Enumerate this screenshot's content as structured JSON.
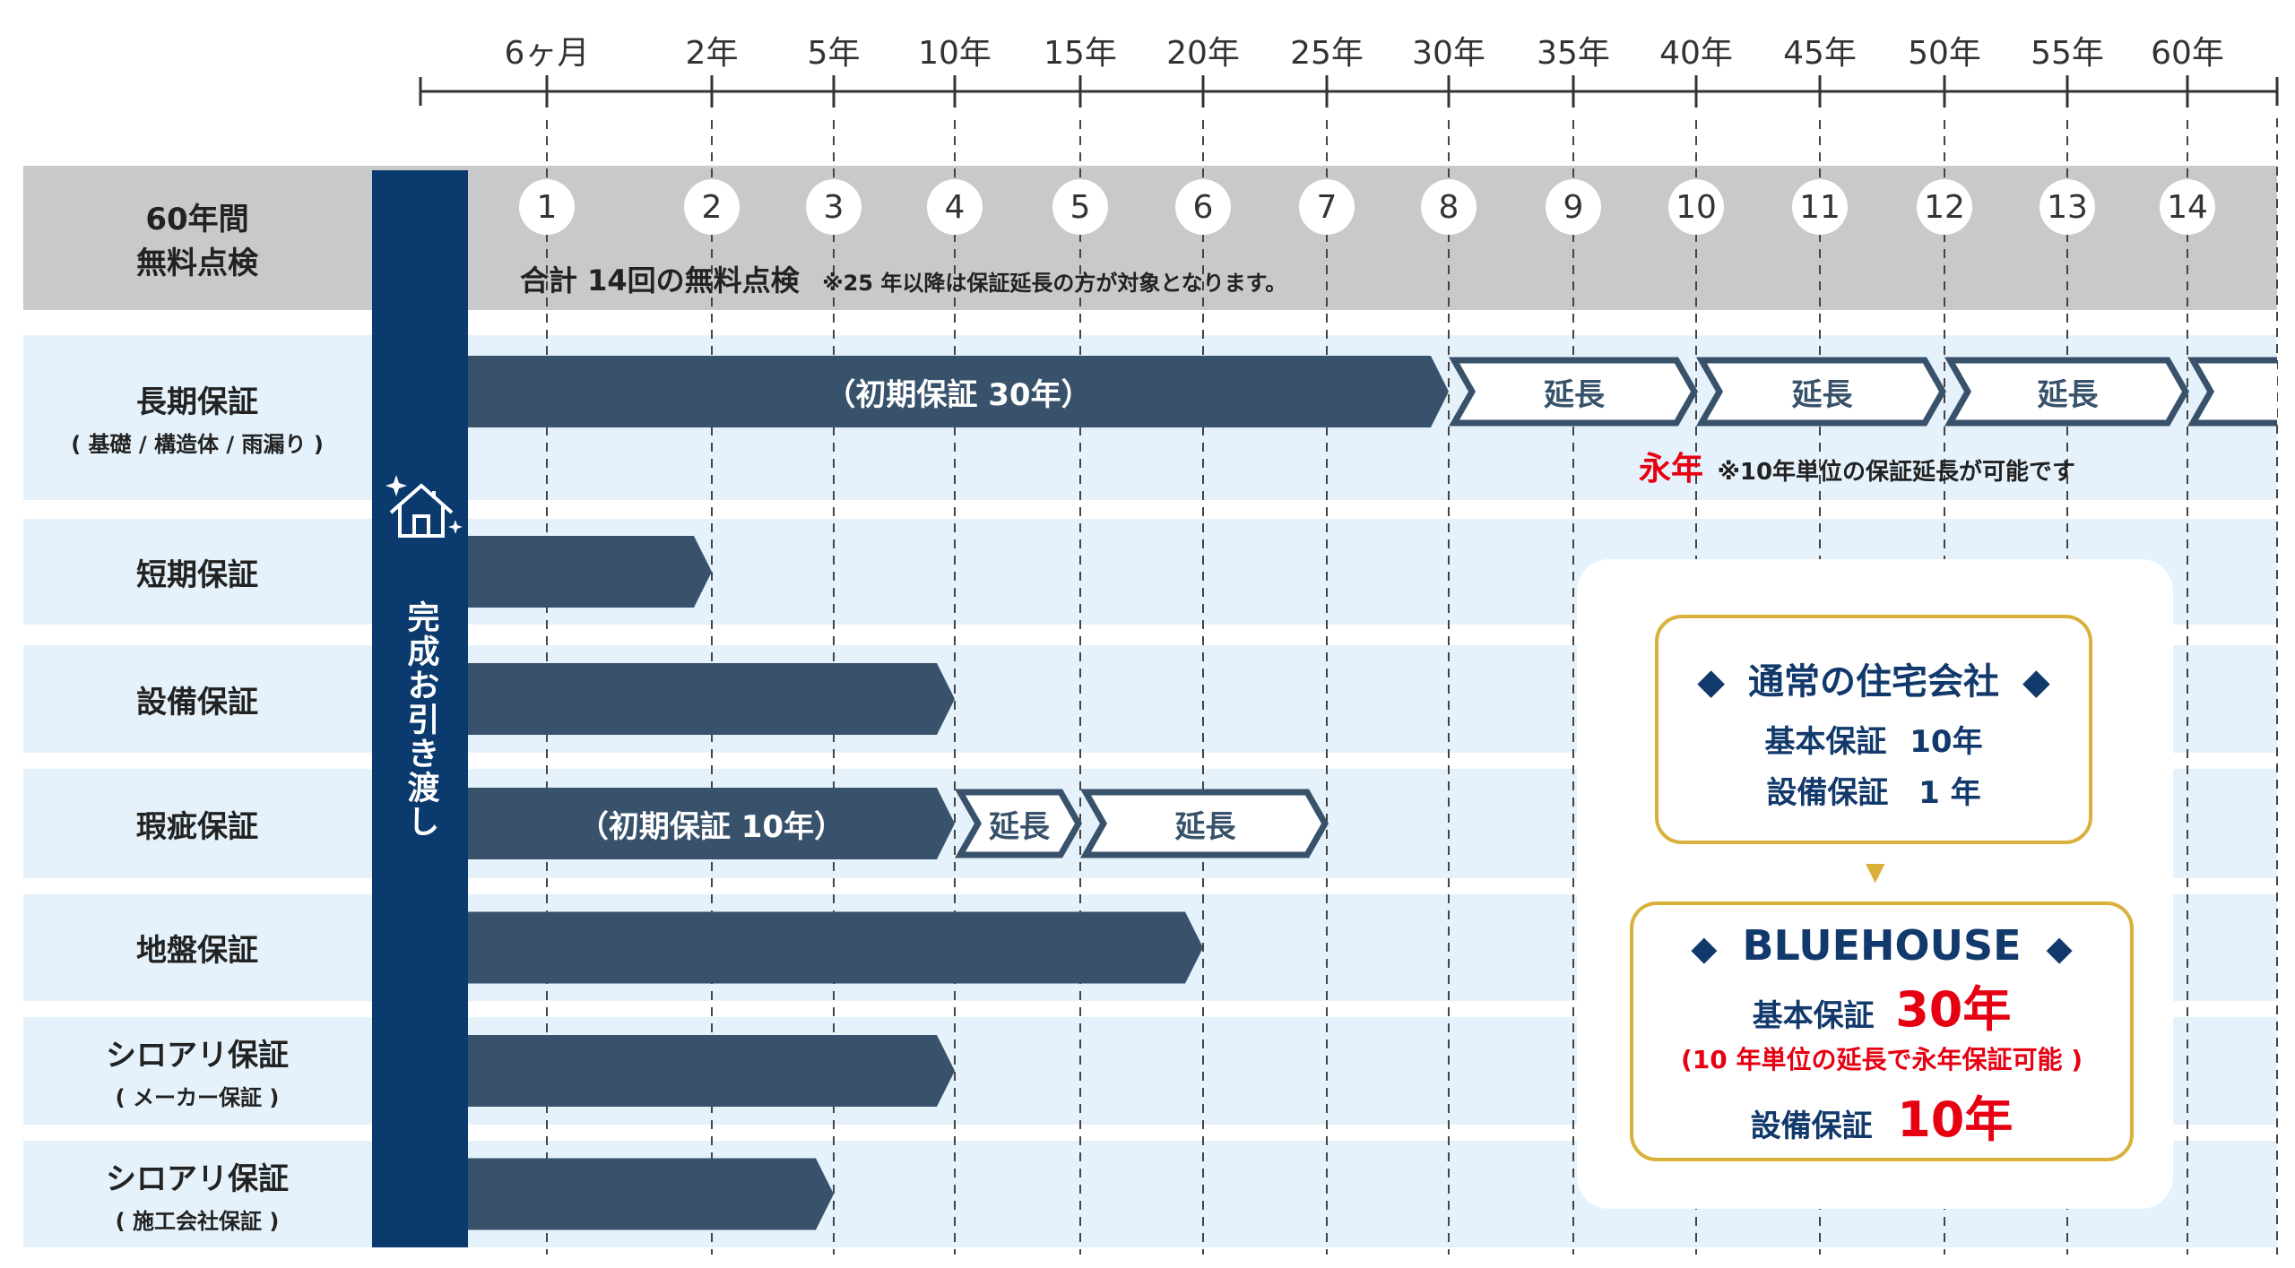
{
  "colors": {
    "bar": "#38526b",
    "row_bg": "#e6f2fb",
    "gray_band": "#c8c9c9",
    "navy": "#0b3a6e",
    "gold": "#d9b03a",
    "red": "#e60012",
    "text_navy": "#12396b"
  },
  "timeline": {
    "ticks": [
      {
        "label": "6ヶ月",
        "years": 0.5
      },
      {
        "label": "2年",
        "years": 2
      },
      {
        "label": "5年",
        "years": 5
      },
      {
        "label": "10年",
        "years": 10
      },
      {
        "label": "15年",
        "years": 15
      },
      {
        "label": "20年",
        "years": 20
      },
      {
        "label": "25年",
        "years": 25
      },
      {
        "label": "30年",
        "years": 30
      },
      {
        "label": "35年",
        "years": 35
      },
      {
        "label": "40年",
        "years": 40
      },
      {
        "label": "45年",
        "years": 45
      },
      {
        "label": "50年",
        "years": 50
      },
      {
        "label": "55年",
        "years": 55
      },
      {
        "label": "60年",
        "years": 60
      }
    ]
  },
  "inspection": {
    "label_line1": "60年間",
    "label_line2": "無料点検",
    "numbers": [
      "1",
      "2",
      "3",
      "4",
      "5",
      "6",
      "7",
      "8",
      "9",
      "10",
      "11",
      "12",
      "13",
      "14"
    ],
    "summary": "合計 14回の無料点検",
    "note": "※25 年以降は保証延長の方が対象となります。"
  },
  "handover": {
    "label": "完成お引き渡し",
    "icon": "house-sparkle-icon"
  },
  "rows": [
    {
      "label": "長期保証",
      "sub": "( 基礎 / 構造体 / 雨漏り )",
      "bar_end_years": 30,
      "bar_text": "（初期保証 30年）",
      "extensions": [
        {
          "from": 30,
          "to": 40,
          "label": "延長"
        },
        {
          "from": 40,
          "to": 50,
          "label": "延長"
        },
        {
          "from": 50,
          "to": 60,
          "label": "延長"
        },
        {
          "from": 60,
          "to": 65,
          "label": ""
        }
      ],
      "note_emphasis": "永年",
      "note": "※10年単位の保証延長が可能です"
    },
    {
      "label": "短期保証",
      "sub": "",
      "bar_end_years": 2,
      "bar_text": "",
      "extensions": []
    },
    {
      "label": "設備保証",
      "sub": "",
      "bar_end_years": 10,
      "bar_text": "",
      "extensions": []
    },
    {
      "label": "瑕疵保証",
      "sub": "",
      "bar_end_years": 10,
      "bar_text": "（初期保証 10年）",
      "extensions": [
        {
          "from": 10,
          "to": 15,
          "label": "延長"
        },
        {
          "from": 15,
          "to": 25,
          "label": "延長"
        }
      ]
    },
    {
      "label": "地盤保証",
      "sub": "",
      "bar_end_years": 20,
      "bar_text": "",
      "extensions": []
    },
    {
      "label": "シロアリ保証",
      "sub": "( メーカー保証 )",
      "bar_end_years": 10,
      "bar_text": "",
      "extensions": []
    },
    {
      "label": "シロアリ保証",
      "sub": "( 施工会社保証 )",
      "bar_end_years": 5,
      "bar_text": "",
      "extensions": []
    }
  ],
  "comparison": {
    "normal": {
      "title": "通常の住宅会社",
      "basic_label": "基本保証",
      "basic_value": "10年",
      "equip_label": "設備保証",
      "equip_value": "1 年"
    },
    "bluehouse": {
      "title": "BLUEHOUSE",
      "basic_label": "基本保証",
      "basic_value": "30年",
      "basic_note": "(10 年単位の延長で永年保証可能 )",
      "equip_label": "設備保証",
      "equip_value": "10年"
    },
    "diamond": "◆",
    "arrow": "▼"
  }
}
